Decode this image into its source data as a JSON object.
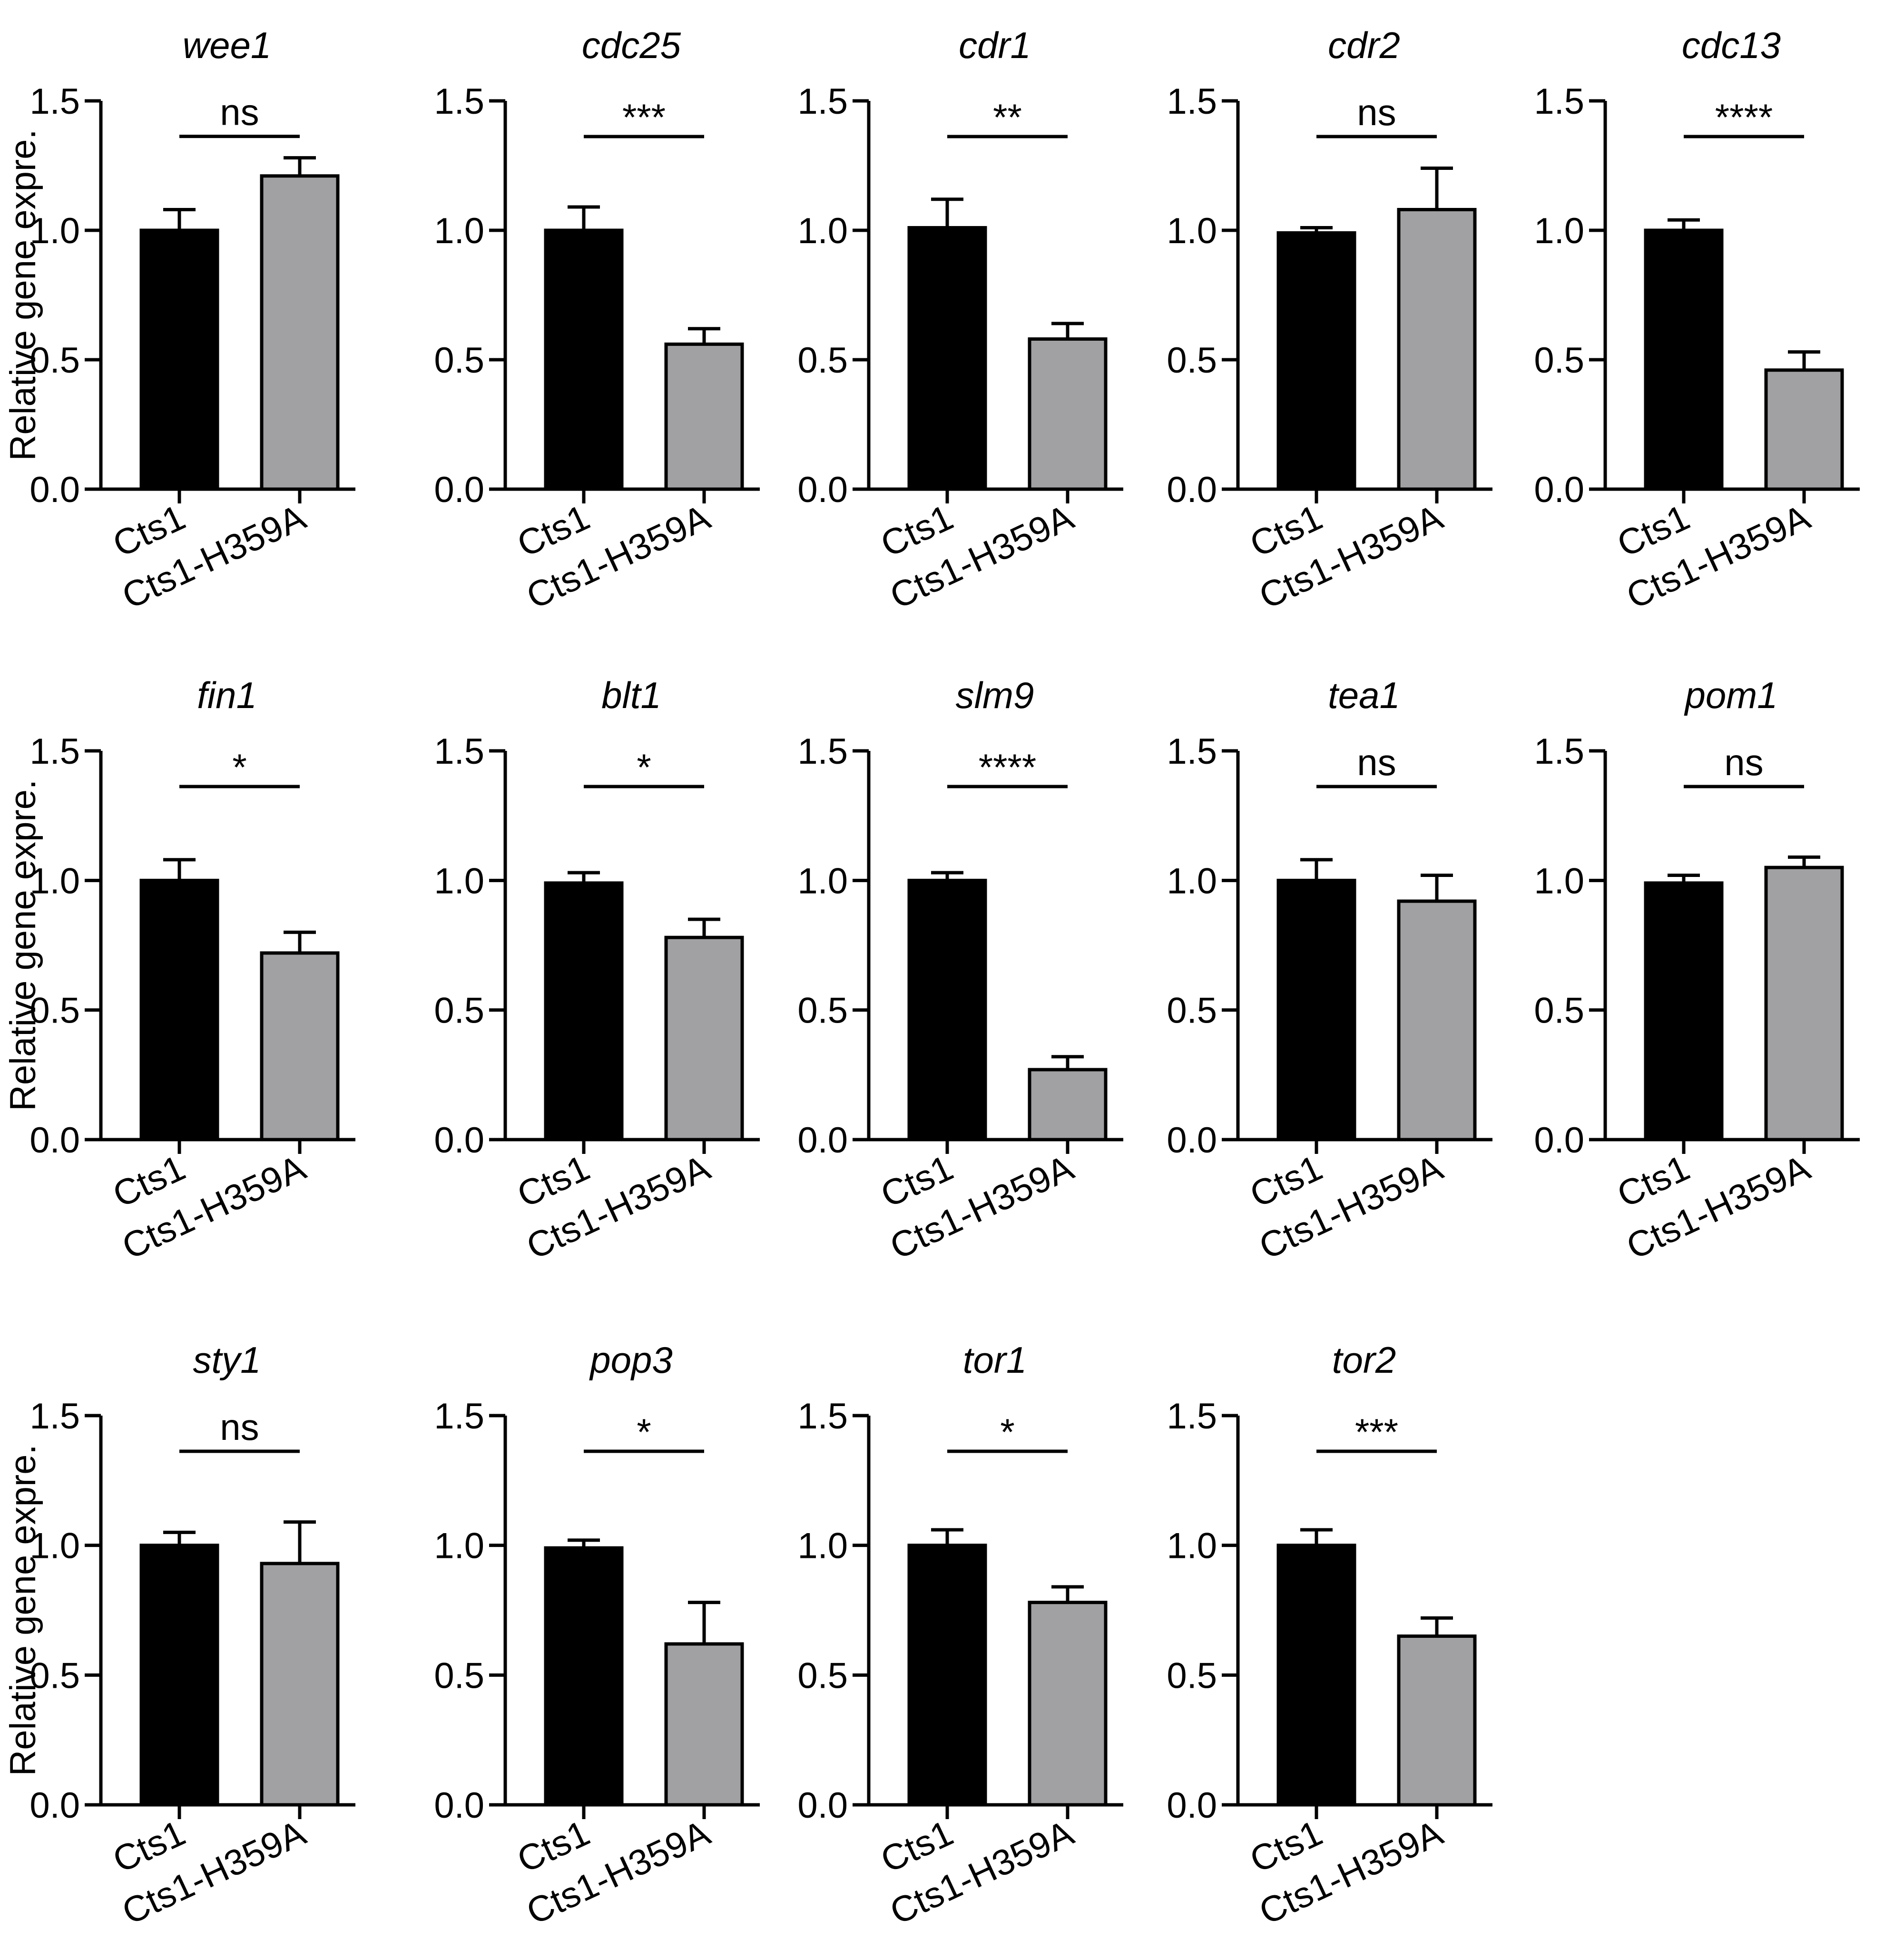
{
  "figure": {
    "y_axis_title": "Relative gene expre.",
    "colors": {
      "control": "#000000",
      "mutant": "#a1a1a3",
      "axis": "#000000"
    }
  },
  "chart_data": [
    {
      "type": "bar",
      "title": "wee1",
      "categories": [
        "Cts1",
        "Cts1-H359A"
      ],
      "values": [
        1.0,
        1.21
      ],
      "errors": [
        0.08,
        0.07
      ],
      "significance": "ns",
      "ylabel": "Relative gene expre.",
      "ylim": [
        0.0,
        1.5
      ],
      "yticks": [
        "0.0",
        "0.5",
        "1.0",
        "1.5"
      ]
    },
    {
      "type": "bar",
      "title": "cdc25",
      "categories": [
        "Cts1",
        "Cts1-H359A"
      ],
      "values": [
        1.0,
        0.56
      ],
      "errors": [
        0.09,
        0.06
      ],
      "significance": "***",
      "ylabel": "",
      "ylim": [
        0.0,
        1.5
      ],
      "yticks": [
        "0.0",
        "0.5",
        "1.0",
        "1.5"
      ]
    },
    {
      "type": "bar",
      "title": "cdr1",
      "categories": [
        "Cts1",
        "Cts1-H359A"
      ],
      "values": [
        1.01,
        0.58
      ],
      "errors": [
        0.11,
        0.06
      ],
      "significance": "**",
      "ylabel": "",
      "ylim": [
        0.0,
        1.5
      ],
      "yticks": [
        "0.0",
        "0.5",
        "1.0",
        "1.5"
      ]
    },
    {
      "type": "bar",
      "title": "cdr2",
      "categories": [
        "Cts1",
        "Cts1-H359A"
      ],
      "values": [
        0.99,
        1.08
      ],
      "errors": [
        0.02,
        0.16
      ],
      "significance": "ns",
      "ylabel": "",
      "ylim": [
        0.0,
        1.5
      ],
      "yticks": [
        "0.0",
        "0.5",
        "1.0",
        "1.5"
      ]
    },
    {
      "type": "bar",
      "title": "cdc13",
      "categories": [
        "Cts1",
        "Cts1-H359A"
      ],
      "values": [
        1.0,
        0.46
      ],
      "errors": [
        0.04,
        0.07
      ],
      "significance": "****",
      "ylabel": "",
      "ylim": [
        0.0,
        1.5
      ],
      "yticks": [
        "0.0",
        "0.5",
        "1.0",
        "1.5"
      ]
    },
    {
      "type": "bar",
      "title": "fin1",
      "categories": [
        "Cts1",
        "Cts1-H359A"
      ],
      "values": [
        1.0,
        0.72
      ],
      "errors": [
        0.08,
        0.08
      ],
      "significance": "*",
      "ylabel": "Relative gene expre.",
      "ylim": [
        0.0,
        1.5
      ],
      "yticks": [
        "0.0",
        "0.5",
        "1.0",
        "1.5"
      ]
    },
    {
      "type": "bar",
      "title": "blt1",
      "categories": [
        "Cts1",
        "Cts1-H359A"
      ],
      "values": [
        0.99,
        0.78
      ],
      "errors": [
        0.04,
        0.07
      ],
      "significance": "*",
      "ylabel": "",
      "ylim": [
        0.0,
        1.5
      ],
      "yticks": [
        "0.0",
        "0.5",
        "1.0",
        "1.5"
      ]
    },
    {
      "type": "bar",
      "title": "slm9",
      "categories": [
        "Cts1",
        "Cts1-H359A"
      ],
      "values": [
        1.0,
        0.27
      ],
      "errors": [
        0.03,
        0.05
      ],
      "significance": "****",
      "ylabel": "",
      "ylim": [
        0.0,
        1.5
      ],
      "yticks": [
        "0.0",
        "0.5",
        "1.0",
        "1.5"
      ]
    },
    {
      "type": "bar",
      "title": "tea1",
      "categories": [
        "Cts1",
        "Cts1-H359A"
      ],
      "values": [
        1.0,
        0.92
      ],
      "errors": [
        0.08,
        0.1
      ],
      "significance": "ns",
      "ylabel": "",
      "ylim": [
        0.0,
        1.5
      ],
      "yticks": [
        "0.0",
        "0.5",
        "1.0",
        "1.5"
      ]
    },
    {
      "type": "bar",
      "title": "pom1",
      "categories": [
        "Cts1",
        "Cts1-H359A"
      ],
      "values": [
        0.99,
        1.05
      ],
      "errors": [
        0.03,
        0.04
      ],
      "significance": "ns",
      "ylabel": "",
      "ylim": [
        0.0,
        1.5
      ],
      "yticks": [
        "0.0",
        "0.5",
        "1.0",
        "1.5"
      ]
    },
    {
      "type": "bar",
      "title": "sty1",
      "categories": [
        "Cts1",
        "Cts1-H359A"
      ],
      "values": [
        1.0,
        0.93
      ],
      "errors": [
        0.05,
        0.16
      ],
      "significance": "ns",
      "ylabel": "Relative gene expre.",
      "ylim": [
        0.0,
        1.5
      ],
      "yticks": [
        "0.0",
        "0.5",
        "1.0",
        "1.5"
      ]
    },
    {
      "type": "bar",
      "title": "pop3",
      "categories": [
        "Cts1",
        "Cts1-H359A"
      ],
      "values": [
        0.99,
        0.62
      ],
      "errors": [
        0.03,
        0.16
      ],
      "significance": "*",
      "ylabel": "",
      "ylim": [
        0.0,
        1.5
      ],
      "yticks": [
        "0.0",
        "0.5",
        "1.0",
        "1.5"
      ]
    },
    {
      "type": "bar",
      "title": "tor1",
      "categories": [
        "Cts1",
        "Cts1-H359A"
      ],
      "values": [
        1.0,
        0.78
      ],
      "errors": [
        0.06,
        0.06
      ],
      "significance": "*",
      "ylabel": "",
      "ylim": [
        0.0,
        1.5
      ],
      "yticks": [
        "0.0",
        "0.5",
        "1.0",
        "1.5"
      ]
    },
    {
      "type": "bar",
      "title": "tor2",
      "categories": [
        "Cts1",
        "Cts1-H359A"
      ],
      "values": [
        1.0,
        0.65
      ],
      "errors": [
        0.06,
        0.07
      ],
      "significance": "***",
      "ylabel": "",
      "ylim": [
        0.0,
        1.5
      ],
      "yticks": [
        "0.0",
        "0.5",
        "1.0",
        "1.5"
      ]
    }
  ]
}
